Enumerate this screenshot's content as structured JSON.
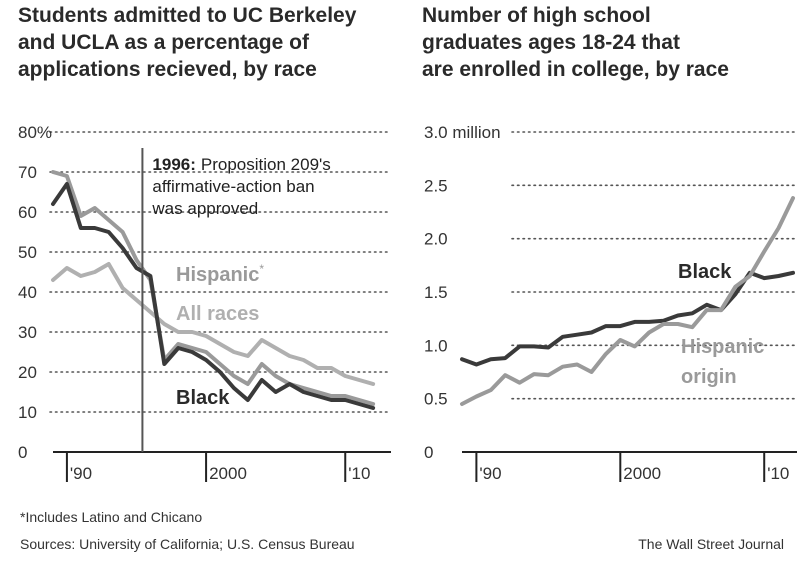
{
  "colors": {
    "black_series": "#3a3a3a",
    "hispanic_series": "#9a9a9a",
    "all_races_series": "#b0b0b0",
    "grid": "#555555"
  },
  "chart_data": [
    {
      "type": "line",
      "title": "Students admitted to UC Berkeley and UCLA as a percentage of applications recieved, by race",
      "x_tick_labels": [
        "'90",
        "2000",
        "'10"
      ],
      "x_ticks": [
        1990,
        2000,
        2010
      ],
      "xlim": [
        1989,
        2013
      ],
      "y_tick_labels": [
        "80%",
        "70",
        "60",
        "50",
        "40",
        "30",
        "20",
        "10",
        "0"
      ],
      "y_ticks": [
        80,
        70,
        60,
        50,
        40,
        30,
        20,
        10,
        0
      ],
      "ylim": [
        0,
        80
      ],
      "grid": "horizontal dotted",
      "x": [
        1989,
        1990,
        1991,
        1992,
        1993,
        1994,
        1995,
        1996,
        1997,
        1998,
        1999,
        2000,
        2001,
        2002,
        2003,
        2004,
        2005,
        2006,
        2007,
        2008,
        2009,
        2010,
        2011,
        2012
      ],
      "series": [
        {
          "name": "Hispanic*",
          "label": "Hispanic",
          "label_mark": "*",
          "values": [
            70,
            69,
            59,
            61,
            58,
            55,
            48,
            43,
            23,
            27,
            26,
            25,
            22,
            19,
            17,
            22,
            19,
            17,
            16,
            15,
            14,
            14,
            13,
            12
          ]
        },
        {
          "name": "All races",
          "values": [
            43,
            46,
            44,
            45,
            47,
            41,
            38,
            35,
            32,
            30,
            30,
            29,
            27,
            25,
            24,
            28,
            26,
            24,
            23,
            21,
            21,
            19,
            18,
            17
          ]
        },
        {
          "name": "Black",
          "values": [
            62,
            67,
            56,
            56,
            55,
            51,
            46,
            44,
            22,
            26,
            25,
            23,
            20,
            16,
            13,
            18,
            15,
            17,
            15,
            14,
            13,
            13,
            12,
            11
          ]
        }
      ],
      "annotation": {
        "x": 1996,
        "year": "1996:",
        "lines": [
          "Proposition 209's",
          "affirmative-action ban",
          "was approved"
        ]
      }
    },
    {
      "type": "line",
      "title": "Number of high school graduates ages 18-24 that are enrolled in college, by race",
      "x_tick_labels": [
        "'90",
        "2000",
        "'10"
      ],
      "x_ticks": [
        1990,
        2000,
        2010
      ],
      "xlim": [
        1989,
        2012
      ],
      "y_tick_labels": [
        "3.0 million",
        "2.5",
        "2.0",
        "1.5",
        "1.0",
        "0.5",
        "0"
      ],
      "y_ticks": [
        3.0,
        2.5,
        2.0,
        1.5,
        1.0,
        0.5,
        0
      ],
      "ylim": [
        0,
        3.0
      ],
      "grid": "horizontal dotted",
      "x": [
        1989,
        1990,
        1991,
        1992,
        1993,
        1994,
        1995,
        1996,
        1997,
        1998,
        1999,
        2000,
        2001,
        2002,
        2003,
        2004,
        2005,
        2006,
        2007,
        2008,
        2009,
        2010,
        2011,
        2012
      ],
      "series": [
        {
          "name": "Black",
          "values": [
            0.87,
            0.82,
            0.87,
            0.88,
            0.99,
            0.99,
            0.98,
            1.08,
            1.1,
            1.12,
            1.18,
            1.18,
            1.22,
            1.22,
            1.23,
            1.28,
            1.3,
            1.38,
            1.33,
            1.48,
            1.68,
            1.63,
            1.65,
            1.68
          ]
        },
        {
          "name": "Hispanic origin",
          "label_lines": [
            "Hispanic",
            "origin"
          ],
          "values": [
            0.45,
            0.52,
            0.58,
            0.72,
            0.65,
            0.73,
            0.72,
            0.8,
            0.82,
            0.75,
            0.92,
            1.05,
            0.99,
            1.12,
            1.2,
            1.2,
            1.17,
            1.33,
            1.33,
            1.55,
            1.65,
            1.88,
            2.1,
            2.38
          ]
        }
      ]
    }
  ],
  "titles": {
    "left_lines": [
      "Students admitted to UC Berkeley",
      "and UCLA as a percentage of",
      "applications recieved, by race"
    ],
    "right_lines": [
      "Number of high school",
      "graduates ages 18-24 that",
      "are enrolled in college, by race"
    ]
  },
  "footer": {
    "footnote": "*Includes Latino and Chicano",
    "sources": "Sources: University of California; U.S. Census Bureau",
    "credit": "The Wall Street Journal"
  }
}
